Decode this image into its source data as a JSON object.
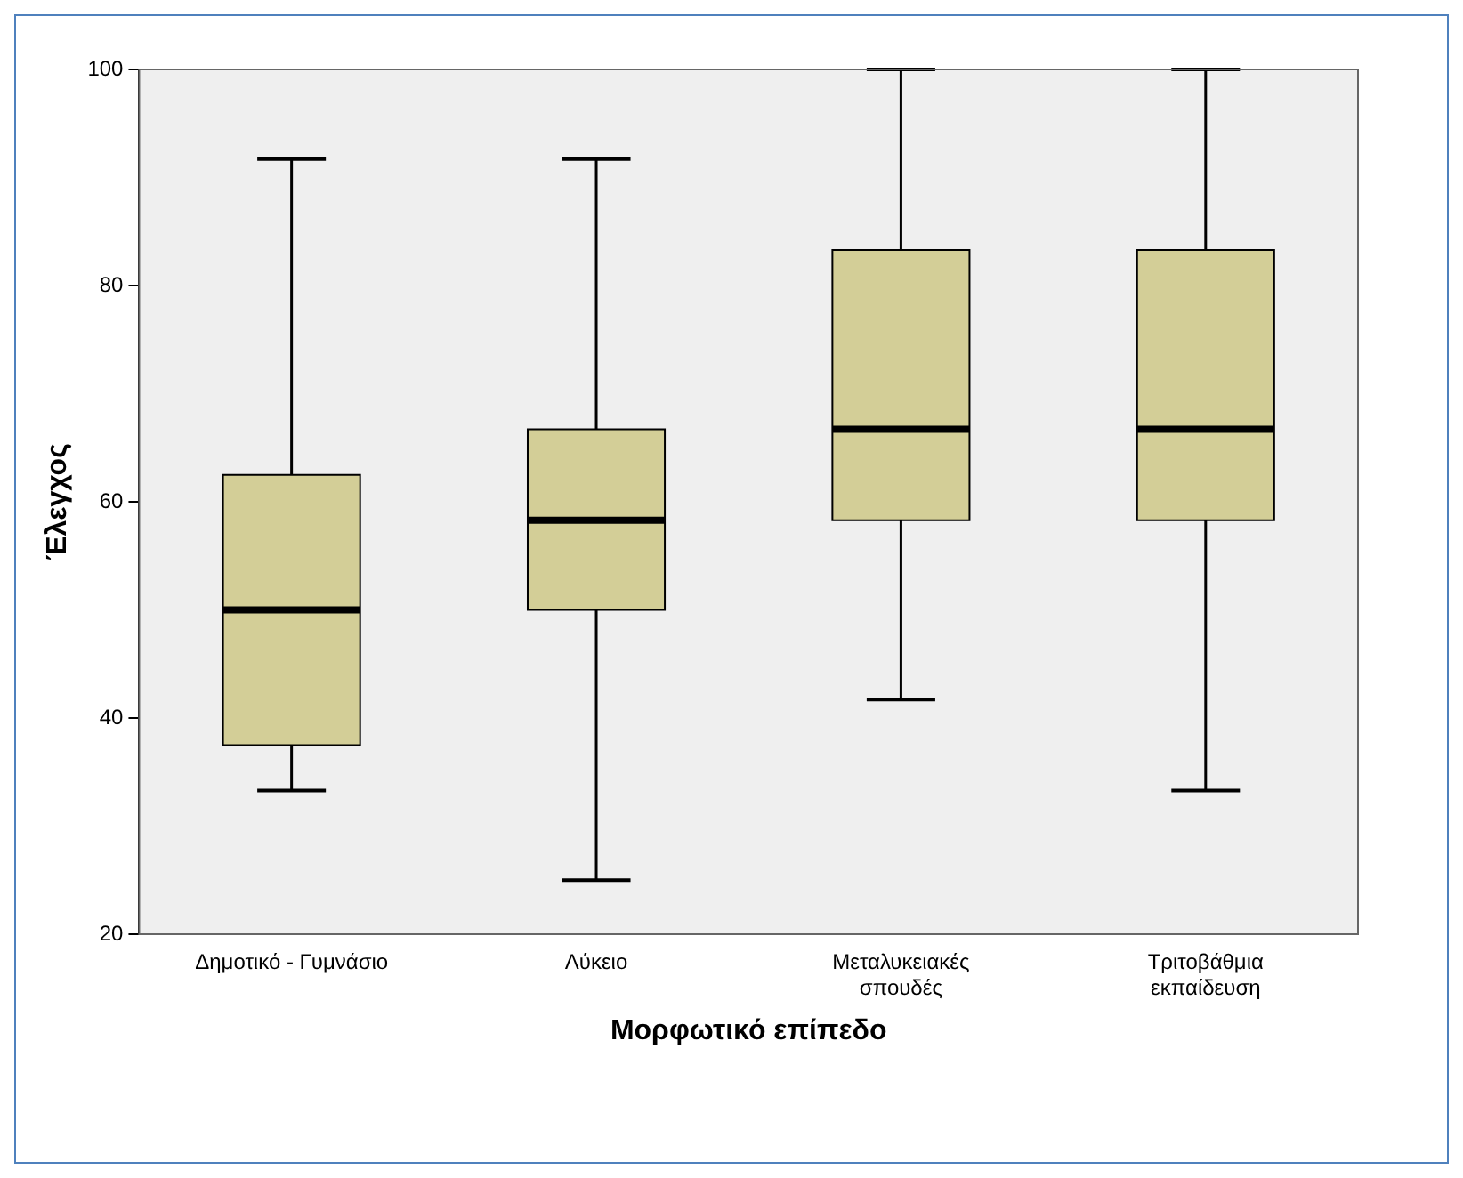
{
  "chart_data": {
    "type": "box",
    "xlabel": "Μορφωτικό επίπεδο",
    "ylabel": "Έλεγχος",
    "categories": [
      "Δημοτικό - Γυμνάσιο",
      "Λύκειο",
      "Μεταλυκειακές σπουδές",
      "Τριτοβάθμια εκπαίδευση"
    ],
    "color": "#d3ce97",
    "ylim": [
      20,
      100
    ],
    "yticks": [
      20,
      40,
      60,
      80,
      100
    ],
    "grid": false,
    "legend": false,
    "boxes": [
      {
        "low": 33.3,
        "q1": 37.5,
        "median": 50,
        "q3": 62.5,
        "high": 91.7
      },
      {
        "low": 25,
        "q1": 50,
        "median": 58.3,
        "q3": 66.7,
        "high": 91.7
      },
      {
        "low": 41.7,
        "q1": 58.3,
        "median": 66.7,
        "q3": 83.3,
        "high": 100
      },
      {
        "low": 33.3,
        "q1": 58.3,
        "median": 66.7,
        "q3": 83.3,
        "high": 100
      }
    ]
  }
}
